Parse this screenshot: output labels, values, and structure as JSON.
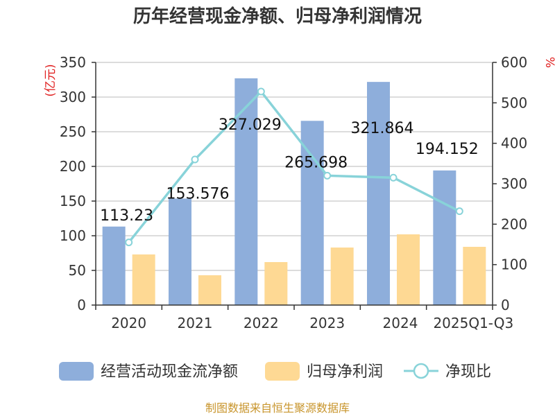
{
  "chart_data": {
    "type": "bar",
    "title": "历年经营现金净额、归母净利润情况",
    "categories": [
      "2020",
      "2021",
      "2022",
      "2023",
      "2024",
      "2025Q1-Q3"
    ],
    "series": [
      {
        "name": "经营活动现金流净额",
        "kind": "bar",
        "axis": "left",
        "color": "#8eaedb",
        "values": [
          113.23,
          153.576,
          327.029,
          265.698,
          321.864,
          194.152
        ],
        "labels": [
          "113.23",
          "153.576",
          "327.029",
          "265.698",
          "321.864",
          "194.152"
        ]
      },
      {
        "name": "归母净利润",
        "kind": "bar",
        "axis": "left",
        "color": "#fed994",
        "values": [
          73,
          43,
          62,
          83,
          102,
          84
        ]
      },
      {
        "name": "净现比",
        "kind": "line",
        "axis": "right",
        "color": "#88d3d9",
        "values": [
          155,
          360,
          528,
          320,
          315,
          232
        ]
      }
    ],
    "y_left": {
      "unit": "(亿元)",
      "min": 0,
      "max": 350,
      "ticks": [
        0,
        50,
        100,
        150,
        200,
        250,
        300,
        350
      ]
    },
    "y_right": {
      "unit": "%",
      "min": 0,
      "max": 600,
      "ticks": [
        0,
        100,
        200,
        300,
        400,
        500,
        600
      ]
    },
    "grid": true,
    "legend_position": "bottom"
  },
  "footer": {
    "source": "制图数据来自恒生聚源数据库"
  }
}
